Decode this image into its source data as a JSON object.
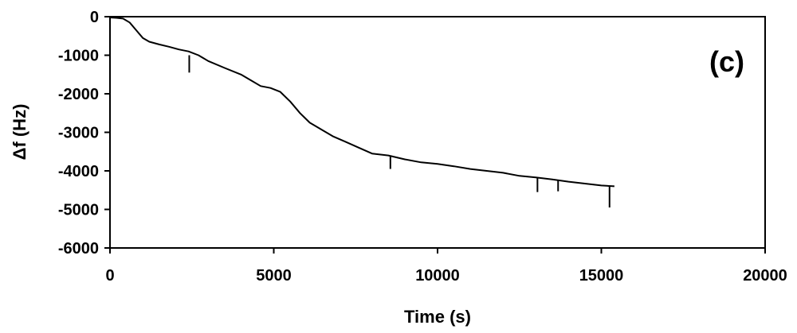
{
  "chart_data": {
    "type": "line",
    "title": "",
    "annotation": "(c)",
    "xlabel": "Time (s)",
    "ylabel": "Δf (Hz)",
    "xlim": [
      0,
      20000
    ],
    "ylim": [
      -6000,
      0
    ],
    "xticks": [
      0,
      5000,
      10000,
      15000,
      20000
    ],
    "yticks": [
      0,
      -1000,
      -2000,
      -3000,
      -4000,
      -5000,
      -6000
    ],
    "grid": false,
    "legend": "none",
    "line_color": "#000000",
    "series": [
      {
        "x": [
          0,
          200,
          400,
          600,
          800,
          1000,
          1200,
          1500,
          1800,
          2100,
          2400,
          2700,
          3000,
          3500,
          4000,
          4300,
          4600,
          4900,
          5200,
          5500,
          5800,
          6100,
          6500,
          6800,
          7200,
          7600,
          8000,
          8500,
          9000,
          9500,
          10000,
          10500,
          11000,
          11500,
          12000,
          12500,
          13000,
          13500,
          14000,
          14500,
          15000,
          15400
        ],
        "y": [
          -20,
          -30,
          -50,
          -150,
          -350,
          -550,
          -650,
          -720,
          -780,
          -850,
          -900,
          -1000,
          -1150,
          -1330,
          -1500,
          -1650,
          -1800,
          -1850,
          -1950,
          -2200,
          -2500,
          -2750,
          -2950,
          -3100,
          -3250,
          -3400,
          -3550,
          -3600,
          -3700,
          -3780,
          -3820,
          -3880,
          -3950,
          -4000,
          -4050,
          -4130,
          -4170,
          -4220,
          -4280,
          -4330,
          -4380,
          -4400
        ]
      }
    ],
    "spikes": [
      {
        "x": 2420,
        "y_top": -1000,
        "y_bottom": -1450
      },
      {
        "x": 8560,
        "y_top": -3600,
        "y_bottom": -3950
      },
      {
        "x": 13050,
        "y_top": -4170,
        "y_bottom": -4550
      },
      {
        "x": 13680,
        "y_top": -4230,
        "y_bottom": -4530
      },
      {
        "x": 15250,
        "y_top": -4380,
        "y_bottom": -4950
      }
    ]
  }
}
